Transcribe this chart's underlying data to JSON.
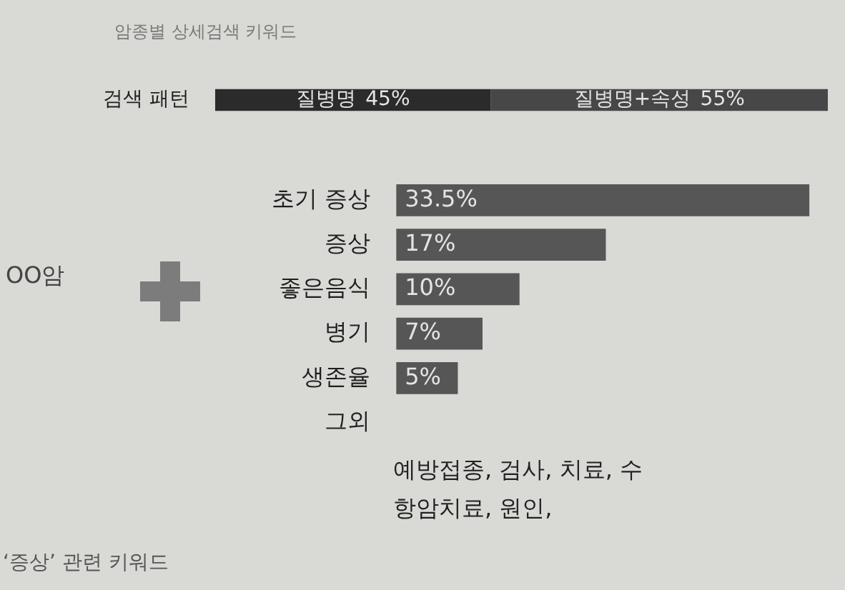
{
  "chart_data": [
    {
      "type": "bar",
      "title": "암종별 상세검색 키워드",
      "orientation": "horizontal",
      "stacked": true,
      "categories": [
        "검색 패턴"
      ],
      "series": [
        {
          "name": "질병명",
          "color": "#2b2b2b",
          "values": [
            45
          ],
          "value_labels": [
            "45%"
          ]
        },
        {
          "name": "질병명+속성",
          "color": "#474747",
          "values": [
            55
          ],
          "value_labels": [
            "55%"
          ]
        }
      ]
    },
    {
      "type": "bar",
      "orientation": "horizontal",
      "categories": [
        "초기 증상",
        "증상",
        "좋은음식",
        "병기",
        "생존율",
        "그외"
      ],
      "values": [
        33.5,
        17,
        10,
        7,
        5,
        null
      ],
      "value_labels": [
        "33.5%",
        "17%",
        "10%",
        "7%",
        "5%",
        null
      ],
      "color": "#565656",
      "annotations": [
        "OO암",
        "예방접종, 검사, 치료, 수",
        "항암치료, 원인,",
        "‘증상’ 관련 키워드"
      ]
    }
  ]
}
